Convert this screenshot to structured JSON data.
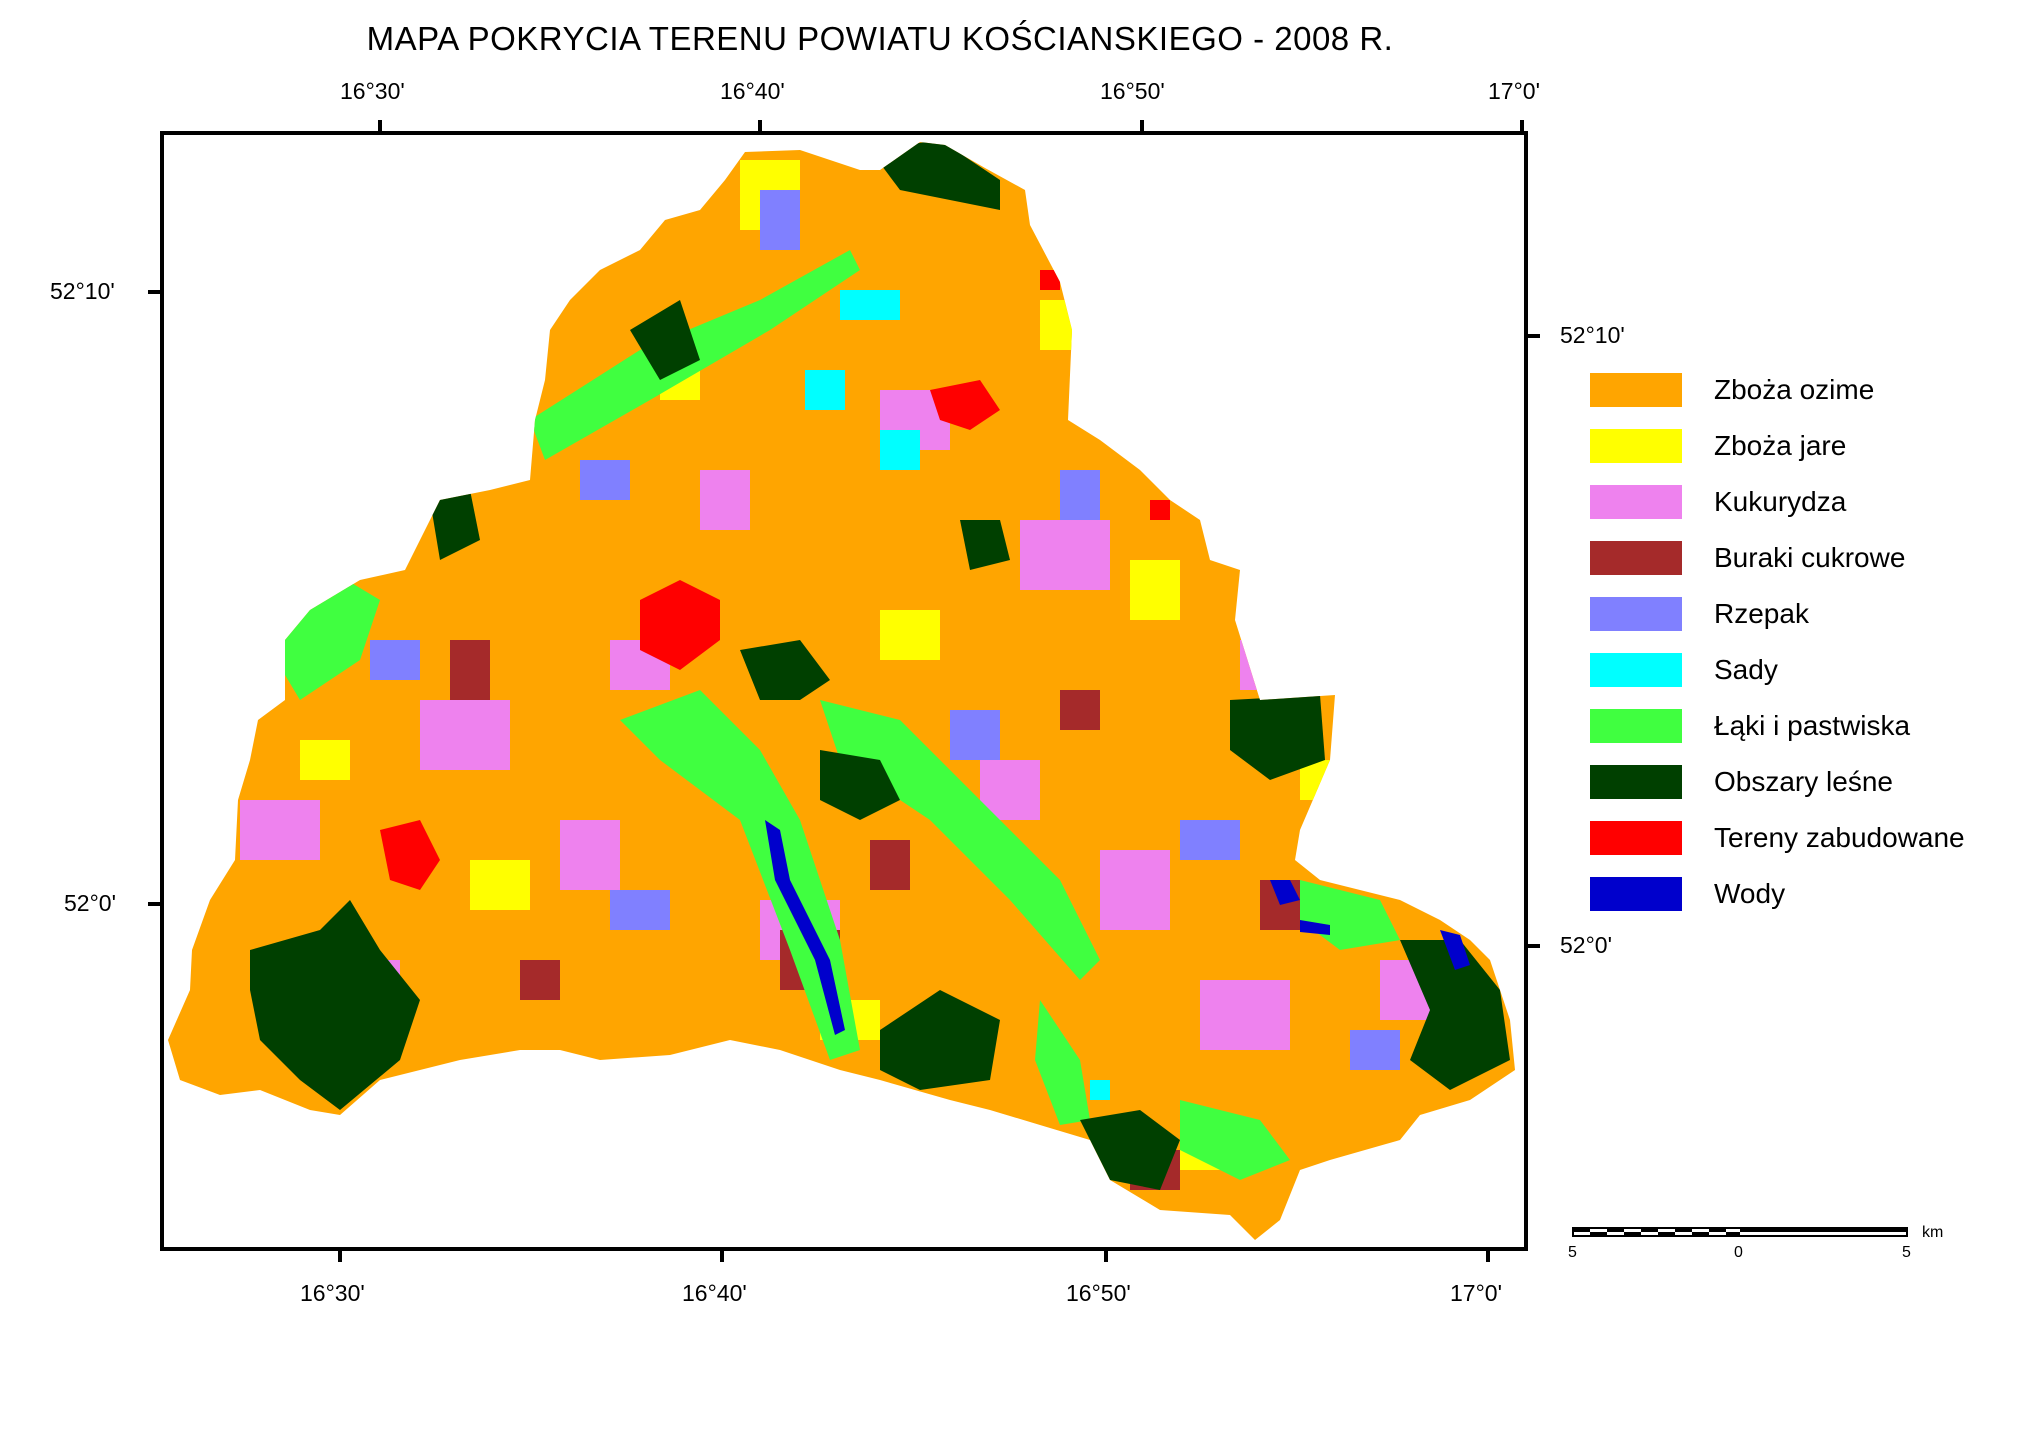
{
  "title": "MAPA POKRYCIA TERENU  POWIATU KOŚCIANSKIEGO - 2008 R.",
  "top_longitudes": [
    "16°30'",
    "16°40'",
    "16°50'",
    "17°0'"
  ],
  "bottom_longitudes": [
    "16°30'",
    "16°40'",
    "16°50'",
    "17°0'"
  ],
  "left_latitudes": [
    "52°10'",
    "52°0'"
  ],
  "right_latitudes": [
    "52°10'",
    "52°0'"
  ],
  "legend": [
    {
      "label": "Zboża ozime",
      "color": "#FFA500"
    },
    {
      "label": "Zboża jare",
      "color": "#FFFF00"
    },
    {
      "label": "Kukurydza",
      "color": "#EE82EE"
    },
    {
      "label": "Buraki cukrowe",
      "color": "#A52A2A"
    },
    {
      "label": "Rzepak",
      "color": "#8080FF"
    },
    {
      "label": "Sady",
      "color": "#00FFFF"
    },
    {
      "label": "Łąki i pastwiska",
      "color": "#40FF40"
    },
    {
      "label": "Obszary leśne",
      "color": "#004000"
    },
    {
      "label": "Tereny zabudowane",
      "color": "#FF0000"
    },
    {
      "label": "Wody",
      "color": "#0000CC"
    }
  ],
  "scalebar": {
    "left": "5",
    "mid": "0",
    "right": "5",
    "unit": "km"
  }
}
